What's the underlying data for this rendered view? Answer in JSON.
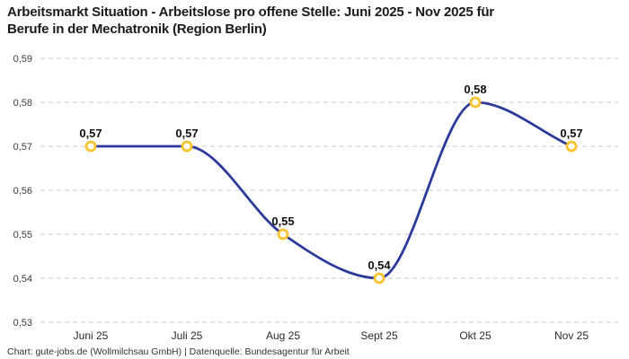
{
  "header": {
    "title_line1": "Arbeitsmarkt Situation - Arbeitslose pro offene Stelle: Juni 2025 - Nov 2025 für",
    "title_line2": "Berufe in der Mechatronik (Region Berlin)"
  },
  "footer": {
    "attribution": "Chart: gute-jobs.de (Wollmilchsau GmbH) | Datenquelle: Bundesagentur für Arbeit"
  },
  "chart_data": {
    "type": "line",
    "title": "Arbeitsmarkt Situation - Arbeitslose pro offene Stelle: Juni 2025 - Nov 2025 für Berufe in der Mechatronik (Region Berlin)",
    "categories": [
      "Juni 25",
      "Juli 25",
      "Aug 25",
      "Sept 25",
      "Okt 25",
      "Nov 25"
    ],
    "values": [
      0.57,
      0.57,
      0.55,
      0.54,
      0.58,
      0.57
    ],
    "point_labels": [
      "0,57",
      "0,57",
      "0,55",
      "0,54",
      "0,58",
      "0,57"
    ],
    "y_tick_labels": [
      "0,53",
      "0,54",
      "0,55",
      "0,56",
      "0,57",
      "0,58",
      "0,59"
    ],
    "y_tick_values": [
      0.53,
      0.54,
      0.55,
      0.56,
      0.57,
      0.58,
      0.59
    ],
    "ylim": [
      0.53,
      0.59
    ],
    "xlabel": "",
    "ylabel": "",
    "legend": "none",
    "grid": "horizontal-dashed",
    "line_style": "smooth-spline",
    "colors": {
      "line": "#2b3a9b",
      "marker_fill": "#ffffff",
      "marker_stroke": "#fcc32c",
      "grid": "#cbcbcb",
      "title_text": "#1a1a1a",
      "axis_text": "#3c3c3c",
      "point_label_text": "#111111",
      "background": "#ffffff"
    }
  }
}
